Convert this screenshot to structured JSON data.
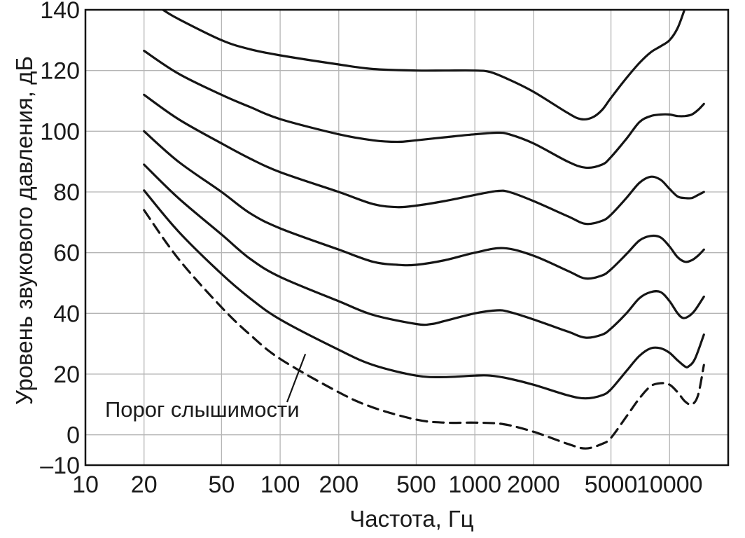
{
  "chart_data": {
    "type": "line",
    "xlabel": "Частота, Гц",
    "ylabel": "Уровень звукового давления, дБ",
    "xscale": "log",
    "xlim": [
      10,
      20000
    ],
    "ylim": [
      -10,
      140
    ],
    "grid": true,
    "x_ticks": [
      {
        "value": 10,
        "label": "10"
      },
      {
        "value": 20,
        "label": "20"
      },
      {
        "value": 50,
        "label": "50"
      },
      {
        "value": 100,
        "label": "100"
      },
      {
        "value": 200,
        "label": "200"
      },
      {
        "value": 500,
        "label": "500"
      },
      {
        "value": 1000,
        "label": "1000"
      },
      {
        "value": 2000,
        "label": "2000"
      },
      {
        "value": 5000,
        "label": "5000"
      },
      {
        "value": 10000,
        "label": "10000"
      }
    ],
    "y_ticks": [
      {
        "value": -10,
        "label": "–10"
      },
      {
        "value": 0,
        "label": "0"
      },
      {
        "value": 20,
        "label": "20"
      },
      {
        "value": 40,
        "label": "40"
      },
      {
        "value": 60,
        "label": "60"
      },
      {
        "value": 80,
        "label": "80"
      },
      {
        "value": 100,
        "label": "100"
      },
      {
        "value": 120,
        "label": "120"
      },
      {
        "value": 140,
        "label": "140"
      }
    ],
    "annotation": {
      "text": "Порог слышимости",
      "points_to": [
        120,
        28
      ]
    },
    "series": [
      {
        "style": "dashed",
        "points": [
          [
            20,
            74
          ],
          [
            30,
            58
          ],
          [
            50,
            42
          ],
          [
            70,
            33
          ],
          [
            100,
            25
          ],
          [
            200,
            14
          ],
          [
            300,
            9
          ],
          [
            500,
            5
          ],
          [
            700,
            4
          ],
          [
            1000,
            4
          ],
          [
            1400,
            3.5
          ],
          [
            2000,
            1
          ],
          [
            3000,
            -3
          ],
          [
            3700,
            -4.5
          ],
          [
            4500,
            -3
          ],
          [
            5000,
            -1
          ],
          [
            6000,
            6
          ],
          [
            7000,
            12
          ],
          [
            8000,
            16
          ],
          [
            9000,
            17
          ],
          [
            10000,
            16.5
          ],
          [
            11000,
            14
          ],
          [
            12000,
            11
          ],
          [
            13000,
            10
          ],
          [
            14000,
            13
          ],
          [
            15000,
            23
          ]
        ]
      },
      {
        "style": "solid",
        "points": [
          [
            20,
            80.5
          ],
          [
            30,
            67
          ],
          [
            50,
            53
          ],
          [
            70,
            45
          ],
          [
            100,
            38
          ],
          [
            200,
            28
          ],
          [
            300,
            23
          ],
          [
            500,
            19.5
          ],
          [
            700,
            19
          ],
          [
            1000,
            19.5
          ],
          [
            1200,
            19.5
          ],
          [
            1500,
            18.5
          ],
          [
            2000,
            16.5
          ],
          [
            3000,
            13
          ],
          [
            3700,
            12
          ],
          [
            4500,
            13
          ],
          [
            5000,
            15
          ],
          [
            6000,
            21
          ],
          [
            7000,
            26
          ],
          [
            8000,
            28.5
          ],
          [
            9000,
            28.5
          ],
          [
            10000,
            27
          ],
          [
            11000,
            24.5
          ],
          [
            12000,
            22.5
          ],
          [
            12500,
            22.5
          ],
          [
            13500,
            25
          ],
          [
            15000,
            33
          ]
        ]
      },
      {
        "style": "solid",
        "points": [
          [
            20,
            89
          ],
          [
            30,
            78
          ],
          [
            50,
            66
          ],
          [
            70,
            58
          ],
          [
            100,
            52
          ],
          [
            200,
            44
          ],
          [
            300,
            39.5
          ],
          [
            500,
            36.5
          ],
          [
            600,
            36.5
          ],
          [
            700,
            37.5
          ],
          [
            1000,
            40
          ],
          [
            1300,
            41
          ],
          [
            1500,
            40.5
          ],
          [
            2000,
            38
          ],
          [
            3000,
            34
          ],
          [
            3700,
            32
          ],
          [
            4500,
            33
          ],
          [
            5000,
            35
          ],
          [
            6000,
            40
          ],
          [
            7000,
            45
          ],
          [
            8000,
            47
          ],
          [
            9000,
            47
          ],
          [
            10000,
            44
          ],
          [
            11000,
            40
          ],
          [
            11700,
            38.5
          ],
          [
            12500,
            39
          ],
          [
            13500,
            41
          ],
          [
            15000,
            45.5
          ]
        ]
      },
      {
        "style": "solid",
        "points": [
          [
            20,
            100
          ],
          [
            30,
            90
          ],
          [
            50,
            80
          ],
          [
            70,
            73
          ],
          [
            100,
            68
          ],
          [
            200,
            61
          ],
          [
            300,
            57
          ],
          [
            400,
            56
          ],
          [
            500,
            56
          ],
          [
            700,
            57.5
          ],
          [
            1000,
            60
          ],
          [
            1400,
            61.5
          ],
          [
            2000,
            59
          ],
          [
            3000,
            54
          ],
          [
            3700,
            51.5
          ],
          [
            4500,
            52.5
          ],
          [
            5000,
            54.5
          ],
          [
            6000,
            59.5
          ],
          [
            7000,
            64
          ],
          [
            8000,
            65.5
          ],
          [
            9000,
            65
          ],
          [
            10000,
            62
          ],
          [
            11000,
            58.5
          ],
          [
            12000,
            57
          ],
          [
            13000,
            57.5
          ],
          [
            14000,
            59
          ],
          [
            15000,
            61
          ]
        ]
      },
      {
        "style": "solid",
        "points": [
          [
            20,
            112
          ],
          [
            30,
            104
          ],
          [
            50,
            96
          ],
          [
            70,
            91
          ],
          [
            100,
            86.5
          ],
          [
            200,
            80
          ],
          [
            300,
            76
          ],
          [
            400,
            75
          ],
          [
            500,
            75.5
          ],
          [
            700,
            77
          ],
          [
            1000,
            79
          ],
          [
            1300,
            80.3
          ],
          [
            1500,
            80
          ],
          [
            2000,
            77
          ],
          [
            3000,
            72
          ],
          [
            3700,
            69.5
          ],
          [
            4500,
            70.5
          ],
          [
            5000,
            72.5
          ],
          [
            6000,
            78
          ],
          [
            7000,
            83
          ],
          [
            8000,
            85
          ],
          [
            9000,
            84
          ],
          [
            10000,
            81
          ],
          [
            11000,
            78.5
          ],
          [
            12000,
            78
          ],
          [
            13000,
            78
          ],
          [
            14000,
            79
          ],
          [
            15000,
            80
          ]
        ]
      },
      {
        "style": "solid",
        "points": [
          [
            20,
            126.5
          ],
          [
            30,
            119
          ],
          [
            50,
            112
          ],
          [
            70,
            108
          ],
          [
            100,
            104
          ],
          [
            200,
            99
          ],
          [
            300,
            97
          ],
          [
            400,
            96.5
          ],
          [
            500,
            97
          ],
          [
            700,
            98
          ],
          [
            1000,
            99
          ],
          [
            1300,
            99.5
          ],
          [
            1500,
            99
          ],
          [
            2000,
            96
          ],
          [
            3000,
            90
          ],
          [
            3700,
            88
          ],
          [
            4500,
            89
          ],
          [
            5000,
            91.5
          ],
          [
            6000,
            97.5
          ],
          [
            7000,
            103
          ],
          [
            8000,
            105
          ],
          [
            9000,
            105.5
          ],
          [
            10000,
            105.5
          ],
          [
            11000,
            105
          ],
          [
            12000,
            105
          ],
          [
            13000,
            105.5
          ],
          [
            14000,
            107
          ],
          [
            15000,
            109
          ]
        ]
      },
      {
        "style": "solid",
        "points": [
          [
            25,
            140
          ],
          [
            30,
            137
          ],
          [
            50,
            130
          ],
          [
            70,
            127
          ],
          [
            100,
            125
          ],
          [
            200,
            122
          ],
          [
            300,
            120.5
          ],
          [
            500,
            120
          ],
          [
            700,
            120
          ],
          [
            1000,
            120
          ],
          [
            1200,
            119.5
          ],
          [
            1500,
            117
          ],
          [
            2000,
            113
          ],
          [
            3000,
            106
          ],
          [
            3500,
            104
          ],
          [
            4000,
            104.5
          ],
          [
            4500,
            107
          ],
          [
            5000,
            111
          ],
          [
            6000,
            117.5
          ],
          [
            7000,
            122.5
          ],
          [
            8000,
            126
          ],
          [
            9000,
            128
          ],
          [
            10000,
            130
          ],
          [
            11000,
            134
          ],
          [
            12000,
            140.5
          ]
        ]
      }
    ]
  }
}
